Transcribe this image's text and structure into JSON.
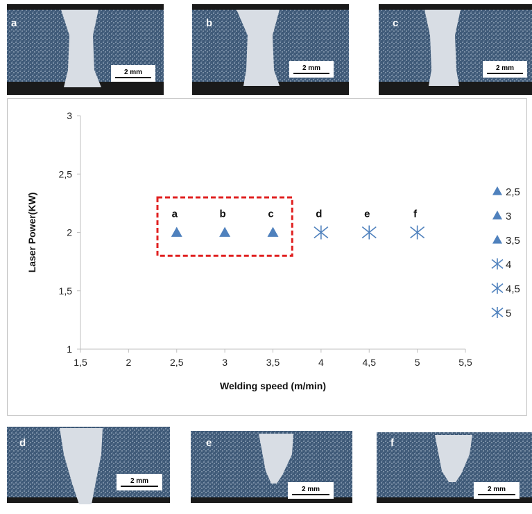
{
  "micrographs": [
    {
      "label": "a",
      "scale": "2 mm"
    },
    {
      "label": "b",
      "scale": "2 mm"
    },
    {
      "label": "c",
      "scale": "2 mm"
    },
    {
      "label": "d",
      "scale": "2 mm"
    },
    {
      "label": "e",
      "scale": "2 mm"
    },
    {
      "label": "f",
      "scale": "2 mm"
    }
  ],
  "colors": {
    "marker": "#4f81bd",
    "highlight_box": "#e02020",
    "axis": "#bfbfbf"
  },
  "chart_data": {
    "type": "scatter",
    "xlabel": "Welding speed (m/min)",
    "ylabel": "Laser Power(KW)",
    "xlim": [
      1.5,
      5.5
    ],
    "ylim": [
      1,
      3
    ],
    "xticks": [
      "1,5",
      "2",
      "2,5",
      "3",
      "3,5",
      "4",
      "4,5",
      "5",
      "5,5"
    ],
    "yticks": [
      "1",
      "1,5",
      "2",
      "2,5",
      "3"
    ],
    "grid": false,
    "legend_position": "right",
    "series": [
      {
        "name": "2,5",
        "marker": "triangle",
        "x": 2.5,
        "y": 2,
        "label": "a"
      },
      {
        "name": "3",
        "marker": "triangle",
        "x": 3,
        "y": 2,
        "label": "b"
      },
      {
        "name": "3,5",
        "marker": "triangle",
        "x": 3.5,
        "y": 2,
        "label": "c"
      },
      {
        "name": "4",
        "marker": "asterisk",
        "x": 4,
        "y": 2,
        "label": "d"
      },
      {
        "name": "4,5",
        "marker": "asterisk",
        "x": 4.5,
        "y": 2,
        "label": "e"
      },
      {
        "name": "5",
        "marker": "asterisk",
        "x": 5,
        "y": 2,
        "label": "f"
      }
    ],
    "highlight_box": {
      "x": [
        2.3,
        3.7
      ],
      "y": [
        1.8,
        2.3
      ]
    }
  }
}
